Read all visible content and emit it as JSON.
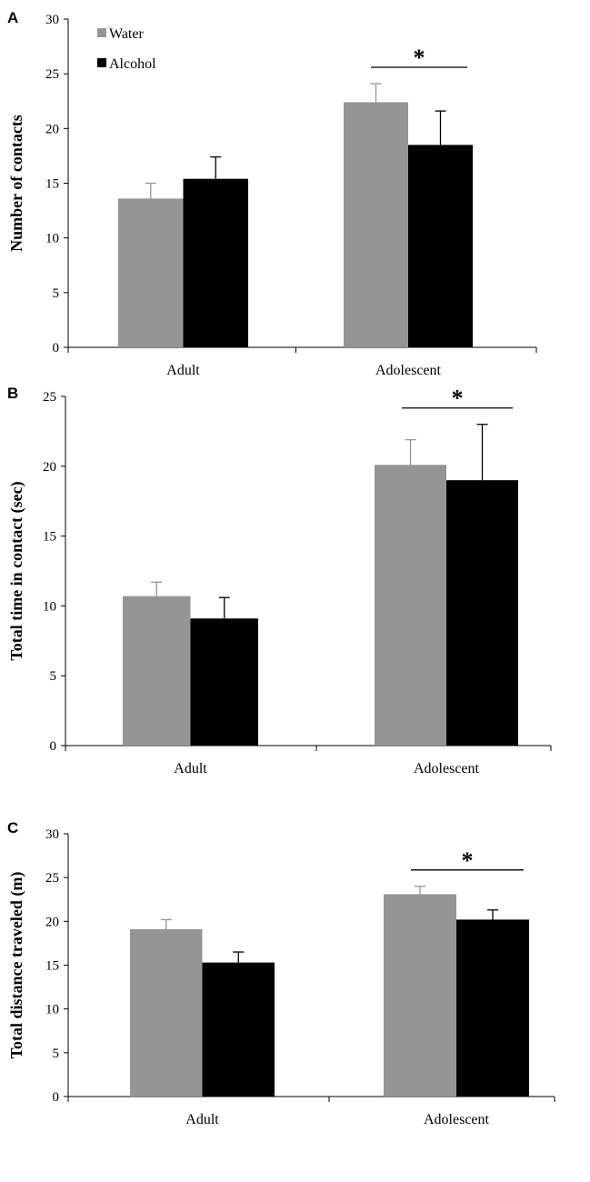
{
  "legend": [
    {
      "name": "Water",
      "color": "#959595"
    },
    {
      "name": "Alcohol",
      "color": "#000000"
    }
  ],
  "chart_data": [
    {
      "type": "bar",
      "panel": "A",
      "categories": [
        "Adult",
        "Adolescent"
      ],
      "series": [
        {
          "name": "Water",
          "color": "#959595",
          "values": [
            13.6,
            22.4
          ],
          "errors": [
            1.4,
            1.7
          ]
        },
        {
          "name": "Alcohol",
          "color": "#000000",
          "values": [
            15.4,
            18.5
          ],
          "errors": [
            2.0,
            3.1
          ]
        }
      ],
      "ylabel": "Number of contacts",
      "xlabel": "",
      "ylim": [
        0,
        30
      ],
      "yticks": [
        0,
        5,
        10,
        15,
        20,
        25,
        30
      ],
      "significance": {
        "category": "Adolescent",
        "label": "*"
      }
    },
    {
      "type": "bar",
      "panel": "B",
      "categories": [
        "Adult",
        "Adolescent"
      ],
      "series": [
        {
          "name": "Water",
          "color": "#959595",
          "values": [
            10.7,
            20.1
          ],
          "errors": [
            1.0,
            1.8
          ]
        },
        {
          "name": "Alcohol",
          "color": "#000000",
          "values": [
            9.1,
            19.0
          ],
          "errors": [
            1.5,
            4.0
          ]
        }
      ],
      "ylabel": "Total time in contact (sec)",
      "xlabel": "",
      "ylim": [
        0,
        25
      ],
      "yticks": [
        0,
        5,
        10,
        15,
        20,
        25
      ],
      "significance": {
        "category": "Adolescent",
        "label": "*"
      }
    },
    {
      "type": "bar",
      "panel": "C",
      "categories": [
        "Adult",
        "Adolescent"
      ],
      "series": [
        {
          "name": "Water",
          "color": "#959595",
          "values": [
            19.1,
            23.1
          ],
          "errors": [
            1.1,
            0.9
          ]
        },
        {
          "name": "Alcohol",
          "color": "#000000",
          "values": [
            15.3,
            20.2
          ],
          "errors": [
            1.2,
            1.1
          ]
        }
      ],
      "ylabel": "Total distance traveled (m)",
      "xlabel": "",
      "ylim": [
        0,
        30
      ],
      "yticks": [
        0,
        5,
        10,
        15,
        20,
        25,
        30
      ],
      "significance": {
        "category": "Adolescent",
        "label": "*"
      }
    }
  ]
}
